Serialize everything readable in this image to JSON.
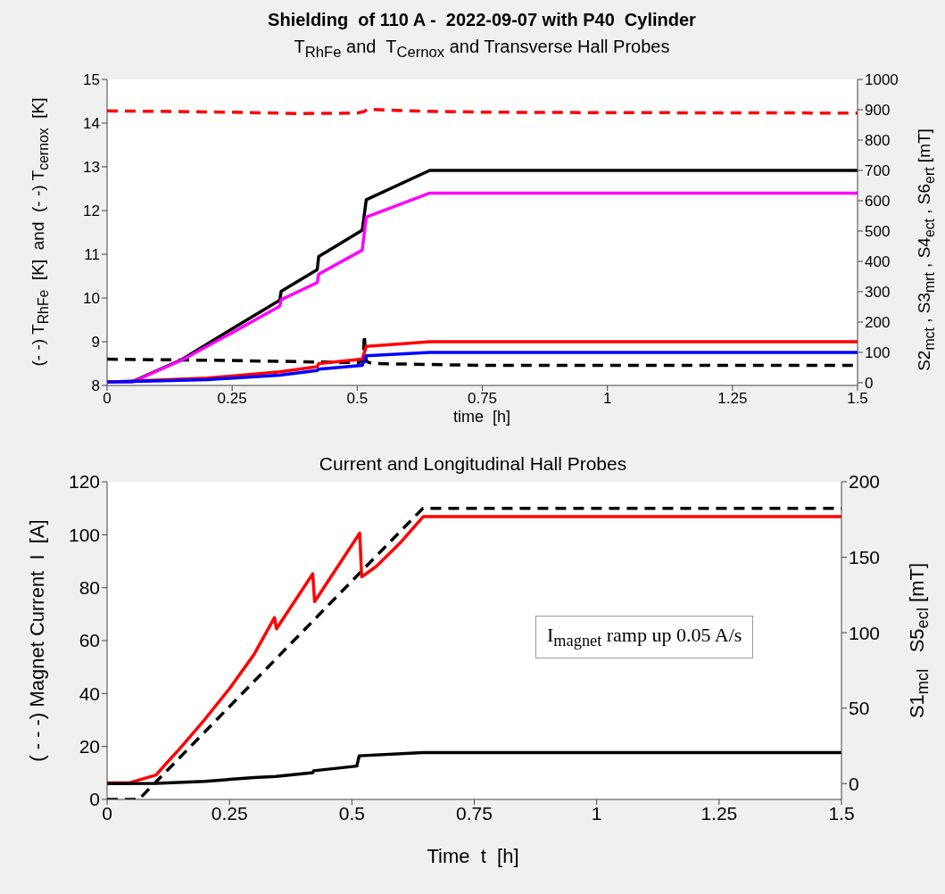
{
  "chart_data": [
    {
      "type": "line",
      "title": "Shielding  of 110 A -  2022-09-07 with P40  Cylinder",
      "subtitle": "T$_{RhFe}$ and  T$_{Cernox}$ and Transverse Hall Probes",
      "xlabel": "time  [h]",
      "ylabel": "(- -) T$_{RhFe}$  [K]  and  (- -) T$_{cernox}$  [K]",
      "y2label": "S2$_{mct}$ , S3$_{mrt}$ , S4$_{ect}$ , S6$_{ert}$ [mT]",
      "xlim": [
        0,
        1.5
      ],
      "xticks": [
        0,
        0.25,
        0.5,
        0.75,
        1,
        1.25,
        1.5
      ],
      "ylim": [
        8,
        15
      ],
      "yticks": [
        8,
        9,
        10,
        11,
        12,
        13,
        14,
        15
      ],
      "y2lim": [
        -9,
        1000
      ],
      "y2ticks": [
        0,
        100,
        200,
        300,
        400,
        500,
        600,
        700,
        800,
        900,
        1000
      ],
      "grid": false,
      "series": [
        {
          "color": "#ff0000",
          "line_style": "dashed",
          "x": [
            0,
            0.1,
            0.25,
            0.38,
            0.5,
            0.515,
            0.52,
            0.6,
            0.75,
            1,
            1.5
          ],
          "values": [
            14.28,
            14.27,
            14.25,
            14.22,
            14.23,
            14.27,
            14.32,
            14.28,
            14.25,
            14.24,
            14.23
          ]
        },
        {
          "color": "#000000",
          "line_style": "dashed",
          "x": [
            0,
            0.25,
            0.5,
            0.512,
            0.514,
            0.518,
            0.53,
            0.75,
            1,
            1.5
          ],
          "values": [
            8.6,
            8.57,
            8.52,
            8.55,
            9.15,
            8.55,
            8.5,
            8.46,
            8.46,
            8.46
          ]
        },
        {
          "color": "#000000",
          "axis": "y2",
          "line_style": "solid",
          "x": [
            0,
            0.05,
            0.15,
            0.25,
            0.345,
            0.348,
            0.42,
            0.423,
            0.51,
            0.518,
            0.645,
            1.5
          ],
          "values": [
            3,
            3,
            77,
            178,
            272,
            301,
            373,
            416,
            503,
            603,
            700,
            700
          ]
        },
        {
          "color": "#ff00ff",
          "axis": "y2",
          "line_style": "solid",
          "x": [
            0,
            0.05,
            0.15,
            0.25,
            0.345,
            0.348,
            0.42,
            0.423,
            0.51,
            0.518,
            0.645,
            1.5
          ],
          "values": [
            2,
            2,
            75,
            165,
            252,
            274,
            330,
            358,
            437,
            546,
            625,
            625
          ]
        },
        {
          "color": "#ff0000",
          "axis": "y2",
          "line_style": "solid",
          "x": [
            0,
            0.2,
            0.345,
            0.42,
            0.423,
            0.51,
            0.518,
            0.645,
            1.5
          ],
          "values": [
            2,
            15,
            36,
            53,
            63,
            78,
            120,
            135,
            135
          ]
        },
        {
          "color": "#0000ff",
          "axis": "y2",
          "line_style": "solid",
          "x": [
            0,
            0.2,
            0.345,
            0.42,
            0.423,
            0.51,
            0.518,
            0.645,
            1.5
          ],
          "values": [
            2,
            10,
            25,
            40,
            45,
            57,
            89,
            100,
            100
          ]
        }
      ]
    },
    {
      "type": "line",
      "title": "Current and Longitudinal Hall Probes",
      "xlabel": "Time  t  [h]",
      "ylabel": "( - - -) Magnet Current  I  [A]",
      "y2label": "S1$_{mcl}$   S5$_{ecl}$ [mT]",
      "xlim": [
        0,
        1.5
      ],
      "xticks": [
        0,
        0.25,
        0.5,
        0.75,
        1,
        1.25,
        1.5
      ],
      "ylim": [
        0,
        120
      ],
      "yticks": [
        0,
        20,
        40,
        60,
        80,
        100,
        120
      ],
      "y2lim": [
        -10.5,
        200
      ],
      "y2ticks": [
        0,
        50,
        100,
        150,
        200
      ],
      "grid": false,
      "annotations": [
        "I$_{magnet}$ ramp up 0.05 A/s"
      ],
      "series": [
        {
          "color": "#000000",
          "line_style": "dashed",
          "x": [
            0,
            0.04,
            0.065,
            0.645,
            1.5
          ],
          "values": [
            0,
            0,
            0,
            110,
            110
          ]
        },
        {
          "color": "#ff0000",
          "axis": "y2",
          "line_style": "solid",
          "x": [
            0,
            0.044,
            0.1,
            0.12,
            0.15,
            0.2,
            0.25,
            0.3,
            0.342,
            0.346,
            0.42,
            0.424,
            0.516,
            0.52,
            0.55,
            0.6,
            0.646,
            1.5
          ],
          "values": [
            0.4,
            0.4,
            5.7,
            13,
            23.7,
            42.7,
            62.9,
            85.5,
            110,
            102.6,
            139,
            120.6,
            166,
            137,
            144,
            160,
            177,
            177
          ]
        },
        {
          "color": "#000000",
          "axis": "y2",
          "line_style": "solid",
          "x": [
            0,
            0.1,
            0.2,
            0.3,
            0.345,
            0.42,
            0.422,
            0.51,
            0.515,
            0.645,
            1.5
          ],
          "values": [
            0,
            0.2,
            1.5,
            4,
            4.7,
            7.2,
            8.5,
            11.6,
            18.4,
            20.5,
            20.5
          ]
        }
      ]
    }
  ]
}
